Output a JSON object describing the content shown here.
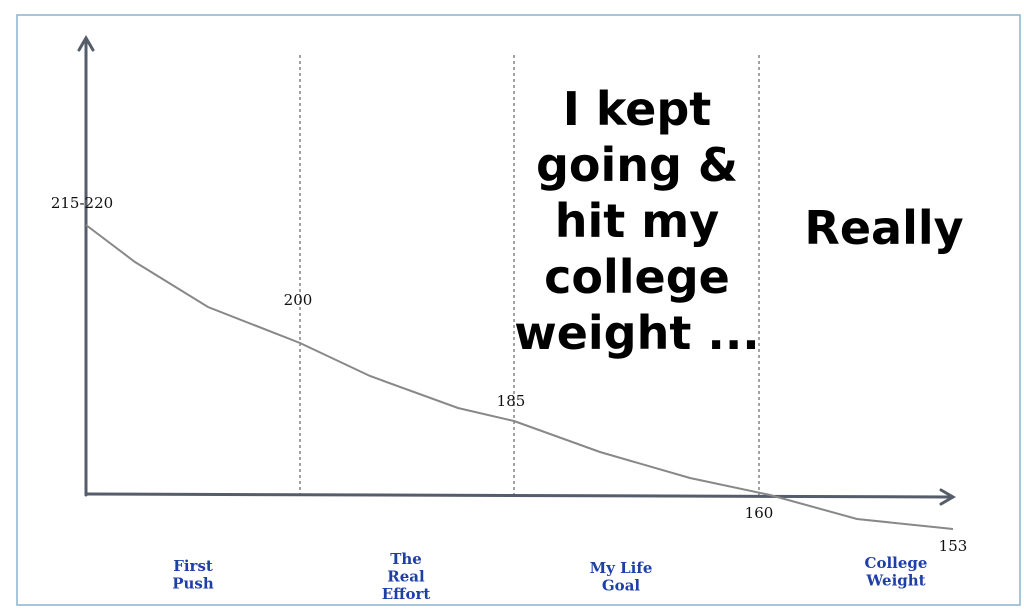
{
  "milestones": [
    "215-220",
    "200",
    "185",
    "160",
    "153"
  ],
  "phases": [
    [
      "First",
      "Push"
    ],
    [
      "The",
      "Real",
      "Effort"
    ],
    [
      "My Life",
      "Goal"
    ],
    [
      "College",
      "Weight"
    ]
  ],
  "caption": [
    "I kept",
    "going &",
    "hit my",
    "college",
    "weight ..."
  ],
  "aside": "Really"
}
